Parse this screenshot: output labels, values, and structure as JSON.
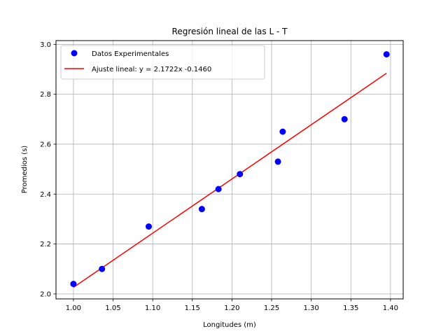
{
  "chart_data": {
    "type": "scatter",
    "title": "Regresión lineal de las L - T",
    "xlabel": "Longitudes (m)",
    "ylabel": "Promedios (s)",
    "xlim": [
      0.978,
      1.416
    ],
    "ylim": [
      1.98,
      3.015
    ],
    "xticks": [
      1.0,
      1.05,
      1.1,
      1.15,
      1.2,
      1.25,
      1.3,
      1.35,
      1.4
    ],
    "xtick_labels": [
      "1.00",
      "1.05",
      "1.10",
      "1.15",
      "1.20",
      "1.25",
      "1.30",
      "1.35",
      "1.40"
    ],
    "yticks": [
      2.0,
      2.2,
      2.4,
      2.6,
      2.8,
      3.0
    ],
    "ytick_labels": [
      "2.0",
      "2.2",
      "2.4",
      "2.6",
      "2.8",
      "3.0"
    ],
    "grid": true,
    "legend_position": "upper-left",
    "series": [
      {
        "name": "Datos Experimentales",
        "kind": "scatter",
        "color": "#0000ff",
        "x": [
          1.0,
          1.036,
          1.095,
          1.162,
          1.183,
          1.21,
          1.258,
          1.264,
          1.342,
          1.395
        ],
        "y": [
          2.04,
          2.1,
          2.27,
          2.34,
          2.42,
          2.48,
          2.53,
          2.65,
          2.7,
          2.96
        ]
      },
      {
        "name": "Ajuste lineal: y = 2.1722x  -0.1460",
        "kind": "line",
        "color": "#ff0000",
        "slope": 2.1722,
        "intercept": -0.146,
        "x_range": [
          1.0,
          1.395
        ]
      }
    ]
  }
}
